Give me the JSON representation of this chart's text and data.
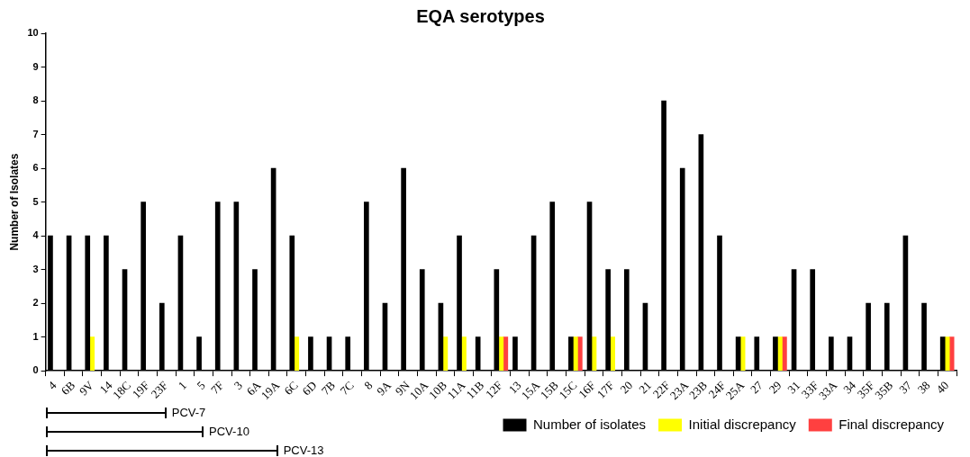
{
  "chart_data": {
    "type": "bar",
    "title": "EQA serotypes",
    "ylabel": "Number of Isolates",
    "categories": [
      "4",
      "6B",
      "9V",
      "14",
      "18C",
      "19F",
      "23F",
      "1",
      "5",
      "7F",
      "3",
      "6A",
      "19A",
      "6C",
      "6D",
      "7B",
      "7C",
      "8",
      "9A",
      "9N",
      "10A",
      "10B",
      "11A",
      "11B",
      "12F",
      "13",
      "15A",
      "15B",
      "15C",
      "16F",
      "17F",
      "20",
      "21",
      "22F",
      "23A",
      "23B",
      "24F",
      "25A",
      "27",
      "29",
      "31",
      "33F",
      "33A",
      "34",
      "35F",
      "35B",
      "37",
      "38",
      "40"
    ],
    "series": [
      {
        "name": "Number of isolates",
        "color": "#000000",
        "values": [
          4,
          4,
          4,
          4,
          3,
          5,
          2,
          4,
          1,
          5,
          5,
          3,
          6,
          4,
          1,
          1,
          1,
          5,
          2,
          6,
          3,
          2,
          4,
          1,
          3,
          1,
          4,
          5,
          1,
          5,
          3,
          3,
          2,
          8,
          6,
          7,
          4,
          1,
          1,
          1,
          3,
          3,
          1,
          1,
          2,
          2,
          4,
          2,
          1
        ]
      },
      {
        "name": "Initial discrepancy",
        "color": "#ffff00",
        "values": [
          null,
          null,
          1,
          null,
          null,
          null,
          null,
          null,
          null,
          null,
          null,
          null,
          null,
          1,
          null,
          null,
          null,
          null,
          null,
          null,
          null,
          1,
          1,
          null,
          1,
          null,
          null,
          null,
          1,
          1,
          1,
          null,
          null,
          null,
          null,
          null,
          null,
          1,
          null,
          1,
          null,
          null,
          null,
          null,
          null,
          null,
          null,
          null,
          1
        ]
      },
      {
        "name": "Final discrepancy",
        "color": "#ff4040",
        "values": [
          null,
          null,
          null,
          null,
          null,
          null,
          null,
          null,
          null,
          null,
          null,
          null,
          null,
          null,
          null,
          null,
          null,
          null,
          null,
          null,
          null,
          null,
          null,
          null,
          1,
          null,
          null,
          null,
          1,
          null,
          null,
          null,
          null,
          null,
          null,
          null,
          null,
          null,
          null,
          1,
          null,
          null,
          null,
          null,
          null,
          null,
          null,
          null,
          1
        ]
      }
    ],
    "ylim": [
      0,
      10
    ],
    "yticks": [
      0,
      1,
      2,
      3,
      4,
      5,
      6,
      7,
      8,
      9,
      10
    ],
    "grid": false,
    "legend": "bottom right",
    "annotations": [
      "PCV-7",
      "PCV-10",
      "PCV-13"
    ]
  }
}
